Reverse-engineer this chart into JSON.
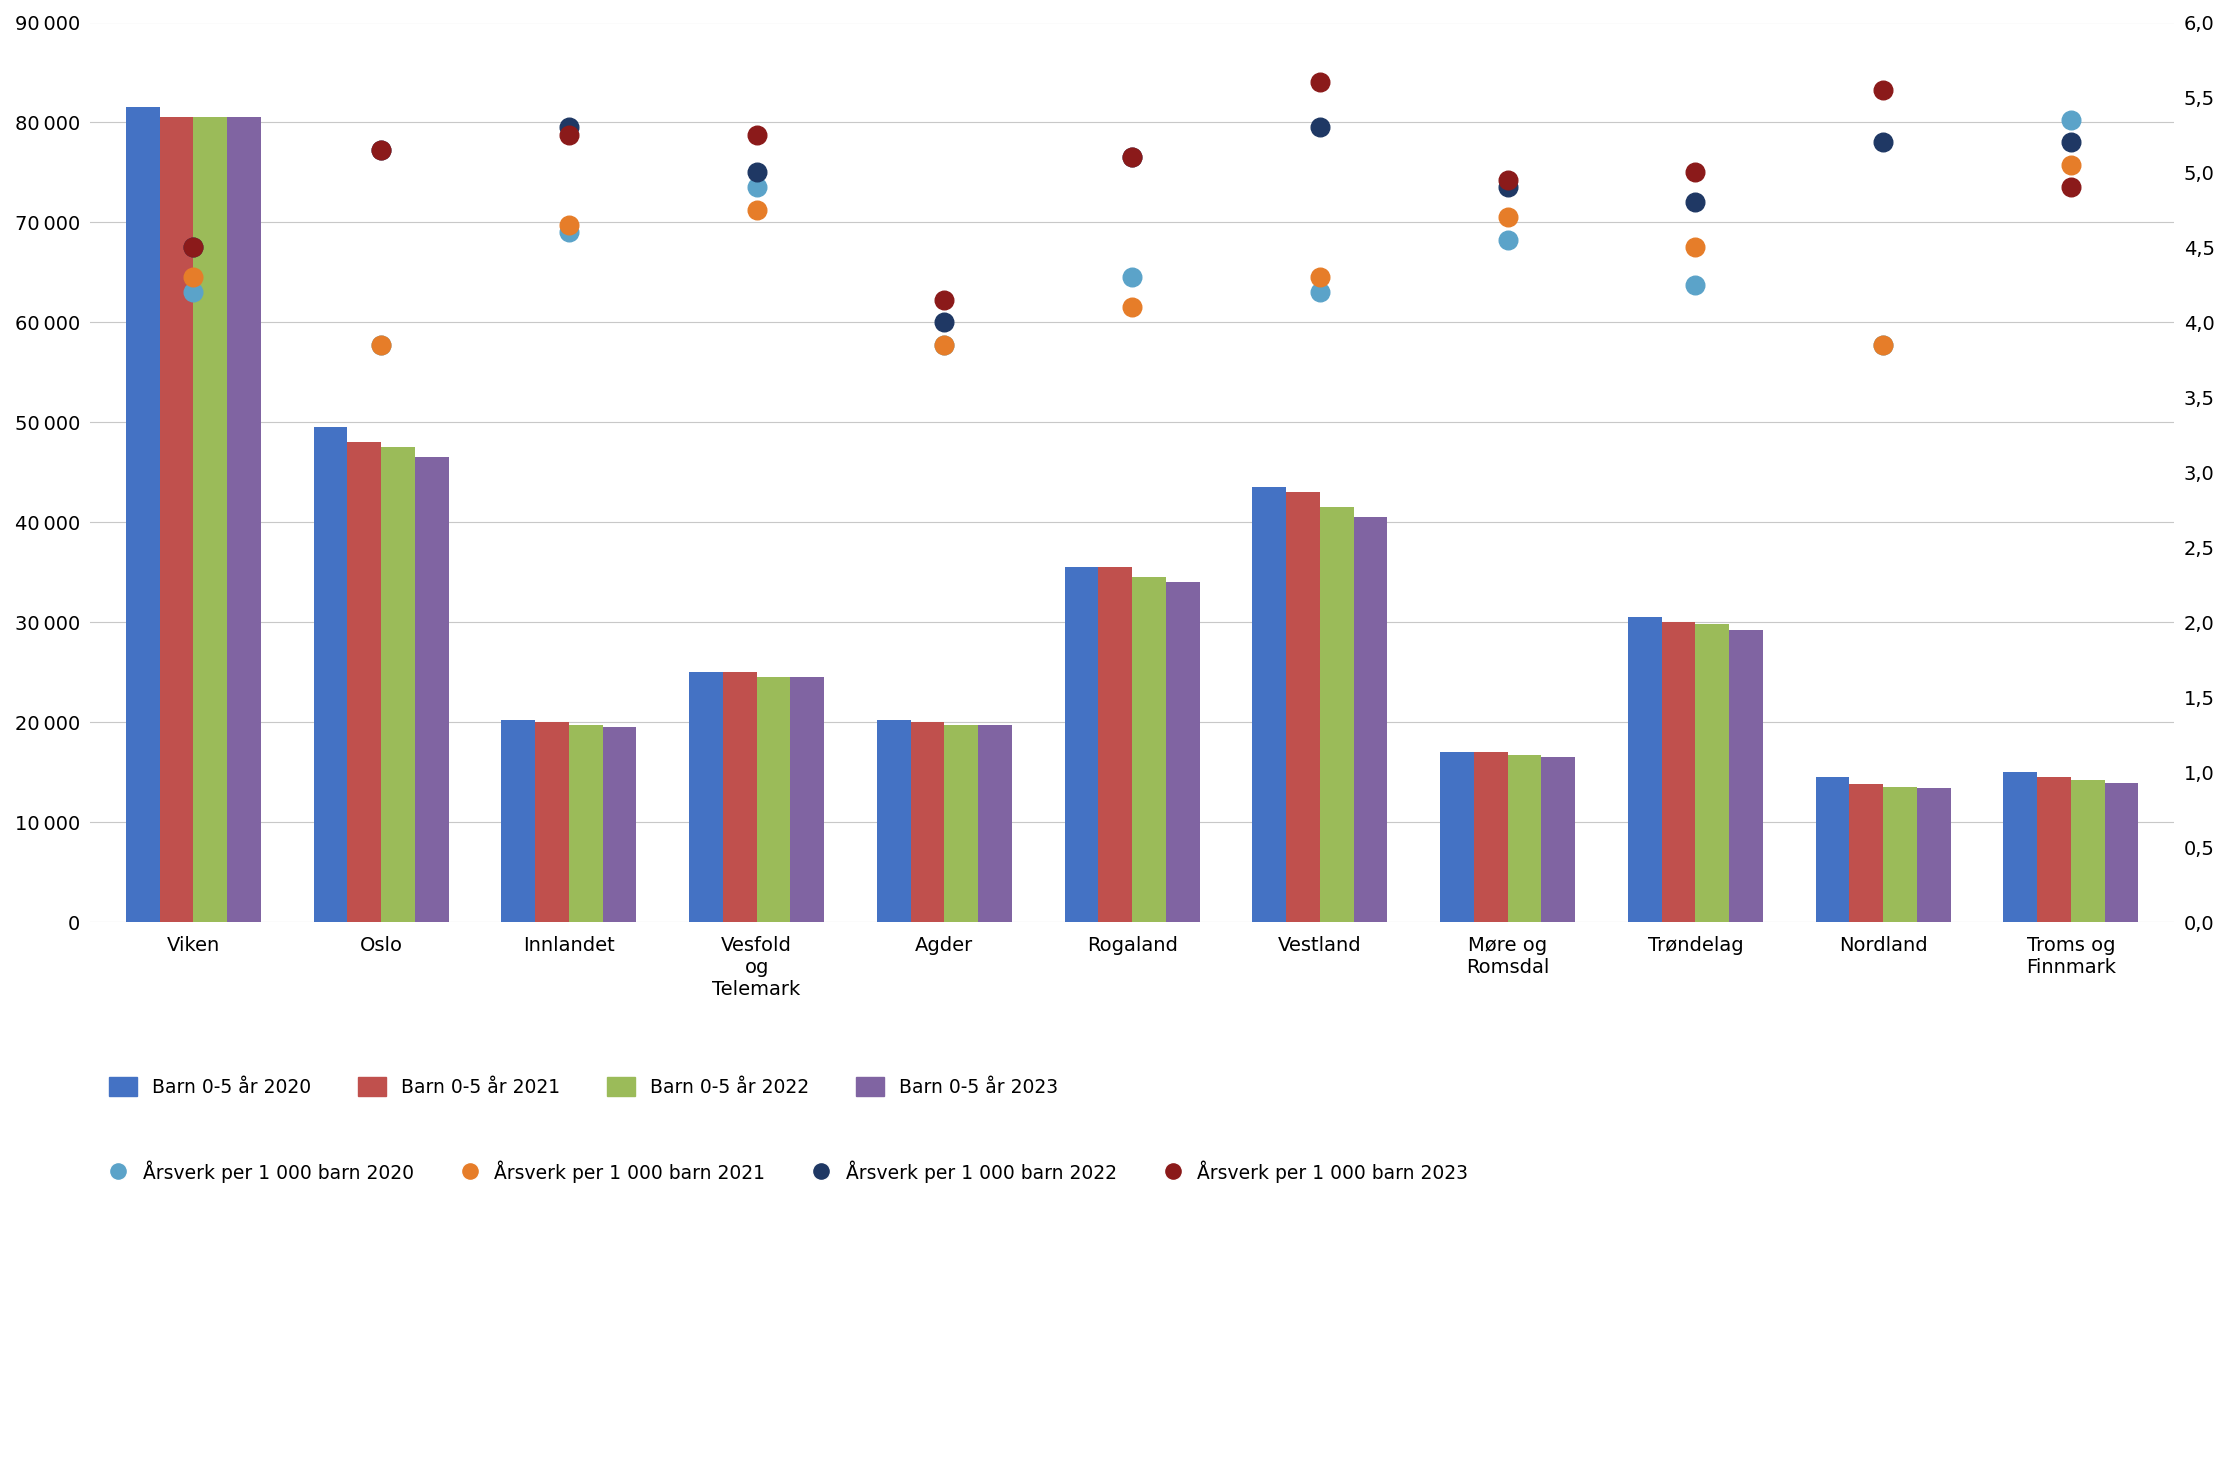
{
  "categories": [
    "Viken",
    "Oslo",
    "Innlandet",
    "Vesfold\nog\nTelemark",
    "Agder",
    "Rogaland",
    "Vestland",
    "Møre og\nRomsdal",
    "Trøndelag",
    "Nordland",
    "Troms og\nFinnmark"
  ],
  "barn_2020": [
    81500,
    49500,
    20200,
    25000,
    20200,
    35500,
    43500,
    17000,
    30500,
    14500,
    15000
  ],
  "barn_2021": [
    80500,
    48000,
    20000,
    25000,
    20000,
    35500,
    43000,
    17000,
    30000,
    13800,
    14500
  ],
  "barn_2022": [
    80500,
    47500,
    19700,
    24500,
    19700,
    34500,
    41500,
    16700,
    29800,
    13500,
    14200
  ],
  "barn_2023": [
    80500,
    46500,
    19500,
    24500,
    19700,
    34000,
    40500,
    16500,
    29200,
    13400,
    13900
  ],
  "arsverk_2020": [
    4.2,
    3.85,
    4.6,
    4.9,
    3.85,
    4.3,
    4.2,
    4.55,
    4.25,
    3.85,
    5.35
  ],
  "arsverk_2021": [
    4.3,
    3.85,
    4.65,
    4.75,
    3.85,
    4.1,
    4.3,
    4.7,
    4.5,
    3.85,
    5.05
  ],
  "arsverk_2022": [
    4.5,
    5.15,
    5.3,
    5.0,
    4.0,
    5.1,
    5.3,
    4.9,
    4.8,
    5.2,
    5.2
  ],
  "arsverk_2023": [
    4.5,
    5.15,
    5.25,
    5.25,
    4.15,
    5.1,
    5.6,
    4.95,
    5.0,
    5.55,
    4.9
  ],
  "bar_colors": [
    "#4472C4",
    "#C0504D",
    "#9BBB59",
    "#8064A2"
  ],
  "dot_colors": [
    "#5BA3C9",
    "#E67D29",
    "#1F3864",
    "#8B1A1A"
  ],
  "ylim_left": [
    0,
    90000
  ],
  "ylim_right": [
    0.0,
    6.0
  ],
  "yticks_left": [
    0,
    10000,
    20000,
    30000,
    40000,
    50000,
    60000,
    70000,
    80000,
    90000
  ],
  "yticks_right": [
    0.0,
    0.5,
    1.0,
    1.5,
    2.0,
    2.5,
    3.0,
    3.5,
    4.0,
    4.5,
    5.0,
    5.5,
    6.0
  ],
  "legend_bars": [
    "Barn 0-5 år 2020",
    "Barn 0-5 år 2021",
    "Barn 0-5 år 2022",
    "Barn 0-5 år 2023"
  ],
  "legend_dots": [
    "Årsverk per 1 000 barn 2020",
    "Årsverk per 1 000 barn 2021",
    "Årsverk per 1 000 barn 2022",
    "Årsverk per 1 000 barn 2023"
  ],
  "background_color": "#FFFFFF",
  "grid_color": "#C8C8C8",
  "bar_width": 0.18,
  "dot_size": 180
}
